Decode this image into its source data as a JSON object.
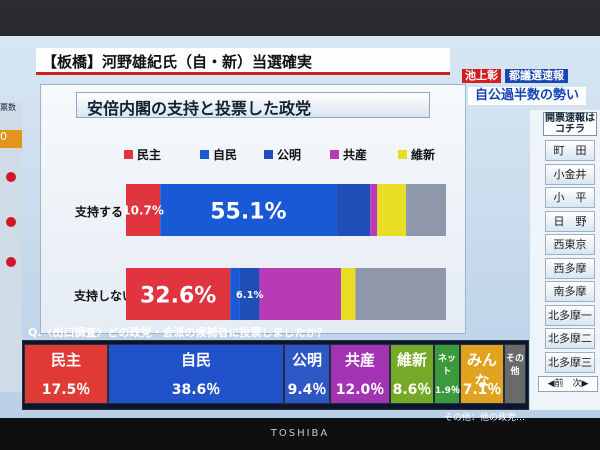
{
  "headline": "【板橋】河野雄紀氏（自・新）当選確実",
  "corner": {
    "tag1": "池上彰",
    "tag2": "都議選速報",
    "tag3": "自公過半数の勢い"
  },
  "chart_title": "安倍内閣の支持と投票した政党",
  "legend": [
    {
      "name": "民主",
      "color": "#e0343f"
    },
    {
      "name": "自民",
      "color": "#1959d6"
    },
    {
      "name": "公明",
      "color": "#1f4fb6"
    },
    {
      "name": "共産",
      "color": "#b83bb6"
    },
    {
      "name": "維新",
      "color": "#e8de25"
    }
  ],
  "chart_data": {
    "type": "bar",
    "orientation": "horizontal-stacked",
    "categories": [
      "支持する",
      "支持しない"
    ],
    "series": [
      {
        "name": "民主",
        "values": [
          10.7,
          32.6
        ],
        "color": "#e0343f"
      },
      {
        "name": "自民",
        "values": [
          55.1,
          3.0
        ],
        "color": "#1959d6"
      },
      {
        "name": "公明",
        "values": [
          10.5,
          6.1
        ],
        "color": "#1f4fb6"
      },
      {
        "name": "共産",
        "values": [
          2.2,
          25.5
        ],
        "color": "#b83bb6"
      },
      {
        "name": "維新",
        "values": [
          9.0,
          4.5
        ],
        "color": "#e8de25"
      },
      {
        "name": "その他",
        "values": [
          12.5,
          28.3
        ],
        "color": "#8f98ab"
      }
    ],
    "data_labels": [
      {
        "row": 0,
        "series": 0,
        "text": "10.7%"
      },
      {
        "row": 0,
        "series": 1,
        "text": "55.1%"
      },
      {
        "row": 1,
        "series": 0,
        "text": "32.6%"
      },
      {
        "row": 1,
        "series": 2,
        "text": "6.1%"
      }
    ]
  },
  "question": "Q.〈出口調査〉どの政党・会派の候補者に投票しましたか？",
  "results": [
    {
      "name": "民主",
      "value": "17.5％",
      "color": "#e03a35"
    },
    {
      "name": "自民",
      "value": "38.6％",
      "color": "#2152c9"
    },
    {
      "name": "公明",
      "value": "9.4％",
      "color": "#2d57c5"
    },
    {
      "name": "共産",
      "value": "12.0％",
      "color": "#a234b4"
    },
    {
      "name": "維新",
      "value": "8.6％",
      "color": "#77a928"
    },
    {
      "name": "ネット",
      "value": "1.9％",
      "color": "#3a9a3c"
    },
    {
      "name": "みんな",
      "value": "7.1％",
      "color": "#e0a21f"
    },
    {
      "name": "その他",
      "value": "",
      "color": "#6a6a6a"
    }
  ],
  "results_note": "その他：他の政党…",
  "right_panel": {
    "button": "開票速報はコチラ",
    "items": [
      "町　田",
      "小金井",
      "小　平",
      "日　野",
      "西東京",
      "西多摩",
      "南多摩",
      "北多摩一",
      "北多摩二",
      "北多摩三"
    ],
    "nav": "◀前　次▶"
  },
  "left_strip": {
    "title": "票数",
    "badge": "0"
  },
  "brand": "TOSHIBA"
}
